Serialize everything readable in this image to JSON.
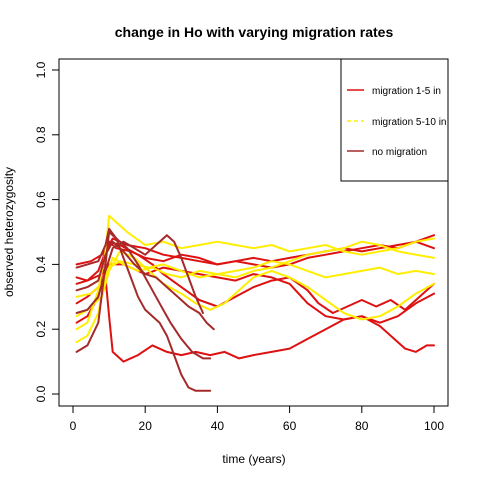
{
  "chart_data": {
    "type": "line",
    "title": "change in Ho with varying migration rates",
    "xlabel": "time (years)",
    "ylabel": "observed heterozygosity",
    "xlim": [
      0,
      100
    ],
    "ylim": [
      0,
      1
    ],
    "x_ticks": [
      0,
      20,
      40,
      60,
      80,
      100
    ],
    "y_ticks": [
      0.0,
      0.2,
      0.4,
      0.6,
      0.8,
      1.0
    ],
    "x_tick_labels": [
      "0",
      "20",
      "40",
      "60",
      "80",
      "100"
    ],
    "y_tick_labels": [
      "0.0",
      "0.2",
      "0.4",
      "0.6",
      "0.8",
      "1.0"
    ],
    "grid": false,
    "legend": {
      "position": "top-right",
      "entries": [
        {
          "label": "migration 1-5 in",
          "color": "#dd1111",
          "dash": "solid"
        },
        {
          "label": "migration 5-10 in",
          "color": "#ffee00",
          "dash": "dashed"
        },
        {
          "label": "no migration",
          "color": "#a52a2a",
          "dash": "solid"
        }
      ]
    },
    "colors": {
      "migration_1_5": "#dd1111",
      "migration_5_10": "#ffee00",
      "no_migration": "#a52a2a"
    },
    "series": [
      {
        "group": "migration_1_5",
        "points": [
          [
            1,
            0.34
          ],
          [
            4,
            0.35
          ],
          [
            7,
            0.38
          ],
          [
            9,
            0.44
          ],
          [
            11,
            0.48
          ],
          [
            15,
            0.46
          ],
          [
            20,
            0.45
          ],
          [
            25,
            0.43
          ],
          [
            30,
            0.42
          ],
          [
            35,
            0.41
          ],
          [
            40,
            0.4
          ],
          [
            45,
            0.41
          ],
          [
            50,
            0.42
          ],
          [
            55,
            0.41
          ],
          [
            60,
            0.42
          ],
          [
            65,
            0.43
          ],
          [
            70,
            0.44
          ],
          [
            75,
            0.45
          ],
          [
            80,
            0.44
          ],
          [
            85,
            0.45
          ],
          [
            90,
            0.46
          ],
          [
            95,
            0.47
          ],
          [
            100,
            0.49
          ]
        ]
      },
      {
        "group": "migration_1_5",
        "points": [
          [
            1,
            0.22
          ],
          [
            4,
            0.24
          ],
          [
            7,
            0.3
          ],
          [
            9,
            0.44
          ],
          [
            10,
            0.47
          ],
          [
            12,
            0.45
          ],
          [
            16,
            0.44
          ],
          [
            20,
            0.42
          ],
          [
            25,
            0.41
          ],
          [
            30,
            0.43
          ],
          [
            35,
            0.42
          ],
          [
            40,
            0.4
          ],
          [
            45,
            0.41
          ],
          [
            50,
            0.4
          ],
          [
            55,
            0.39
          ],
          [
            60,
            0.4
          ],
          [
            65,
            0.42
          ],
          [
            70,
            0.43
          ],
          [
            75,
            0.44
          ],
          [
            80,
            0.45
          ],
          [
            85,
            0.46
          ],
          [
            90,
            0.45
          ],
          [
            95,
            0.47
          ],
          [
            100,
            0.45
          ]
        ]
      },
      {
        "group": "migration_1_5",
        "points": [
          [
            1,
            0.4
          ],
          [
            5,
            0.41
          ],
          [
            8,
            0.43
          ],
          [
            10,
            0.47
          ],
          [
            13,
            0.46
          ],
          [
            18,
            0.43
          ],
          [
            22,
            0.4
          ],
          [
            25,
            0.37
          ],
          [
            30,
            0.33
          ],
          [
            35,
            0.29
          ],
          [
            40,
            0.27
          ],
          [
            45,
            0.3
          ],
          [
            50,
            0.33
          ],
          [
            55,
            0.35
          ],
          [
            60,
            0.36
          ],
          [
            65,
            0.32
          ],
          [
            68,
            0.28
          ],
          [
            72,
            0.25
          ],
          [
            76,
            0.27
          ],
          [
            80,
            0.29
          ],
          [
            84,
            0.27
          ],
          [
            88,
            0.29
          ],
          [
            92,
            0.26
          ],
          [
            96,
            0.3
          ],
          [
            100,
            0.34
          ]
        ]
      },
      {
        "group": "migration_1_5",
        "points": [
          [
            1,
            0.28
          ],
          [
            4,
            0.3
          ],
          [
            7,
            0.33
          ],
          [
            9,
            0.36
          ],
          [
            10,
            0.24
          ],
          [
            11,
            0.13
          ],
          [
            14,
            0.1
          ],
          [
            18,
            0.12
          ],
          [
            22,
            0.15
          ],
          [
            26,
            0.13
          ],
          [
            30,
            0.12
          ],
          [
            34,
            0.13
          ],
          [
            38,
            0.12
          ],
          [
            42,
            0.13
          ],
          [
            46,
            0.11
          ],
          [
            50,
            0.12
          ],
          [
            55,
            0.13
          ],
          [
            60,
            0.14
          ],
          [
            65,
            0.17
          ],
          [
            70,
            0.2
          ],
          [
            75,
            0.23
          ],
          [
            80,
            0.24
          ],
          [
            85,
            0.21
          ],
          [
            88,
            0.18
          ],
          [
            92,
            0.14
          ],
          [
            95,
            0.13
          ],
          [
            98,
            0.15
          ],
          [
            100,
            0.15
          ]
        ]
      },
      {
        "group": "migration_1_5",
        "points": [
          [
            1,
            0.36
          ],
          [
            4,
            0.35
          ],
          [
            8,
            0.37
          ],
          [
            10,
            0.4
          ],
          [
            14,
            0.4
          ],
          [
            20,
            0.37
          ],
          [
            25,
            0.39
          ],
          [
            30,
            0.38
          ],
          [
            35,
            0.37
          ],
          [
            40,
            0.36
          ],
          [
            45,
            0.35
          ],
          [
            50,
            0.37
          ],
          [
            55,
            0.36
          ],
          [
            60,
            0.34
          ],
          [
            65,
            0.28
          ],
          [
            70,
            0.24
          ],
          [
            75,
            0.23
          ],
          [
            80,
            0.24
          ],
          [
            85,
            0.22
          ],
          [
            90,
            0.24
          ],
          [
            95,
            0.28
          ],
          [
            100,
            0.31
          ]
        ]
      },
      {
        "group": "migration_5_10",
        "points": [
          [
            1,
            0.2
          ],
          [
            4,
            0.22
          ],
          [
            7,
            0.32
          ],
          [
            9,
            0.44
          ],
          [
            10,
            0.55
          ],
          [
            12,
            0.53
          ],
          [
            15,
            0.5
          ],
          [
            20,
            0.46
          ],
          [
            25,
            0.47
          ],
          [
            30,
            0.45
          ],
          [
            35,
            0.46
          ],
          [
            40,
            0.47
          ],
          [
            45,
            0.46
          ],
          [
            50,
            0.45
          ],
          [
            55,
            0.46
          ],
          [
            60,
            0.44
          ],
          [
            65,
            0.45
          ],
          [
            70,
            0.46
          ],
          [
            75,
            0.44
          ],
          [
            80,
            0.43
          ],
          [
            85,
            0.44
          ],
          [
            90,
            0.45
          ],
          [
            95,
            0.47
          ],
          [
            100,
            0.48
          ]
        ]
      },
      {
        "group": "migration_5_10",
        "points": [
          [
            1,
            0.16
          ],
          [
            4,
            0.18
          ],
          [
            7,
            0.25
          ],
          [
            9,
            0.36
          ],
          [
            11,
            0.42
          ],
          [
            14,
            0.4
          ],
          [
            18,
            0.38
          ],
          [
            22,
            0.39
          ],
          [
            26,
            0.37
          ],
          [
            30,
            0.36
          ],
          [
            35,
            0.38
          ],
          [
            40,
            0.37
          ],
          [
            45,
            0.36
          ],
          [
            50,
            0.38
          ],
          [
            55,
            0.39
          ],
          [
            60,
            0.41
          ],
          [
            65,
            0.43
          ],
          [
            70,
            0.44
          ],
          [
            75,
            0.45
          ],
          [
            80,
            0.47
          ],
          [
            85,
            0.46
          ],
          [
            90,
            0.44
          ],
          [
            95,
            0.43
          ],
          [
            100,
            0.42
          ]
        ]
      },
      {
        "group": "migration_5_10",
        "points": [
          [
            1,
            0.24
          ],
          [
            4,
            0.26
          ],
          [
            8,
            0.3
          ],
          [
            10,
            0.38
          ],
          [
            13,
            0.44
          ],
          [
            17,
            0.42
          ],
          [
            21,
            0.38
          ],
          [
            25,
            0.34
          ],
          [
            30,
            0.31
          ],
          [
            34,
            0.28
          ],
          [
            38,
            0.26
          ],
          [
            42,
            0.28
          ],
          [
            46,
            0.32
          ],
          [
            50,
            0.36
          ],
          [
            55,
            0.38
          ],
          [
            60,
            0.36
          ],
          [
            65,
            0.33
          ],
          [
            70,
            0.29
          ],
          [
            75,
            0.25
          ],
          [
            80,
            0.23
          ],
          [
            85,
            0.24
          ],
          [
            90,
            0.27
          ],
          [
            95,
            0.31
          ],
          [
            100,
            0.34
          ]
        ]
      },
      {
        "group": "migration_5_10",
        "points": [
          [
            1,
            0.3
          ],
          [
            5,
            0.31
          ],
          [
            8,
            0.34
          ],
          [
            10,
            0.39
          ],
          [
            13,
            0.41
          ],
          [
            17,
            0.4
          ],
          [
            21,
            0.39
          ],
          [
            25,
            0.4
          ],
          [
            30,
            0.38
          ],
          [
            35,
            0.36
          ],
          [
            40,
            0.37
          ],
          [
            45,
            0.38
          ],
          [
            50,
            0.39
          ],
          [
            55,
            0.41
          ],
          [
            60,
            0.4
          ],
          [
            65,
            0.38
          ],
          [
            70,
            0.36
          ],
          [
            75,
            0.37
          ],
          [
            80,
            0.38
          ],
          [
            85,
            0.39
          ],
          [
            90,
            0.37
          ],
          [
            95,
            0.38
          ],
          [
            100,
            0.37
          ]
        ]
      },
      {
        "group": "no_migration",
        "points": [
          [
            1,
            0.39
          ],
          [
            4,
            0.4
          ],
          [
            7,
            0.41
          ],
          [
            9,
            0.46
          ],
          [
            10,
            0.51
          ],
          [
            12,
            0.48
          ],
          [
            14,
            0.42
          ],
          [
            16,
            0.36
          ],
          [
            18,
            0.3
          ],
          [
            20,
            0.26
          ],
          [
            22,
            0.24
          ],
          [
            24,
            0.22
          ],
          [
            26,
            0.18
          ],
          [
            28,
            0.12
          ],
          [
            30,
            0.06
          ],
          [
            32,
            0.02
          ],
          [
            34,
            0.01
          ],
          [
            36,
            0.01
          ],
          [
            38,
            0.01
          ]
        ]
      },
      {
        "group": "no_migration",
        "points": [
          [
            1,
            0.13
          ],
          [
            4,
            0.15
          ],
          [
            7,
            0.22
          ],
          [
            9,
            0.4
          ],
          [
            10,
            0.5
          ],
          [
            12,
            0.48
          ],
          [
            15,
            0.45
          ],
          [
            18,
            0.4
          ],
          [
            21,
            0.34
          ],
          [
            24,
            0.28
          ],
          [
            27,
            0.22
          ],
          [
            30,
            0.17
          ],
          [
            33,
            0.13
          ],
          [
            36,
            0.11
          ],
          [
            38,
            0.11
          ]
        ]
      },
      {
        "group": "no_migration",
        "points": [
          [
            1,
            0.32
          ],
          [
            4,
            0.33
          ],
          [
            7,
            0.35
          ],
          [
            9,
            0.43
          ],
          [
            11,
            0.47
          ],
          [
            14,
            0.44
          ],
          [
            17,
            0.4
          ],
          [
            20,
            0.37
          ],
          [
            23,
            0.36
          ],
          [
            26,
            0.33
          ],
          [
            29,
            0.3
          ],
          [
            32,
            0.27
          ],
          [
            35,
            0.25
          ],
          [
            37,
            0.22
          ],
          [
            39,
            0.2
          ]
        ]
      },
      {
        "group": "no_migration",
        "points": [
          [
            1,
            0.25
          ],
          [
            4,
            0.26
          ],
          [
            7,
            0.3
          ],
          [
            9,
            0.38
          ],
          [
            11,
            0.45
          ],
          [
            14,
            0.47
          ],
          [
            17,
            0.45
          ],
          [
            20,
            0.43
          ],
          [
            23,
            0.46
          ],
          [
            26,
            0.49
          ],
          [
            28,
            0.47
          ],
          [
            30,
            0.42
          ],
          [
            32,
            0.36
          ],
          [
            34,
            0.3
          ],
          [
            36,
            0.25
          ]
        ]
      }
    ]
  }
}
